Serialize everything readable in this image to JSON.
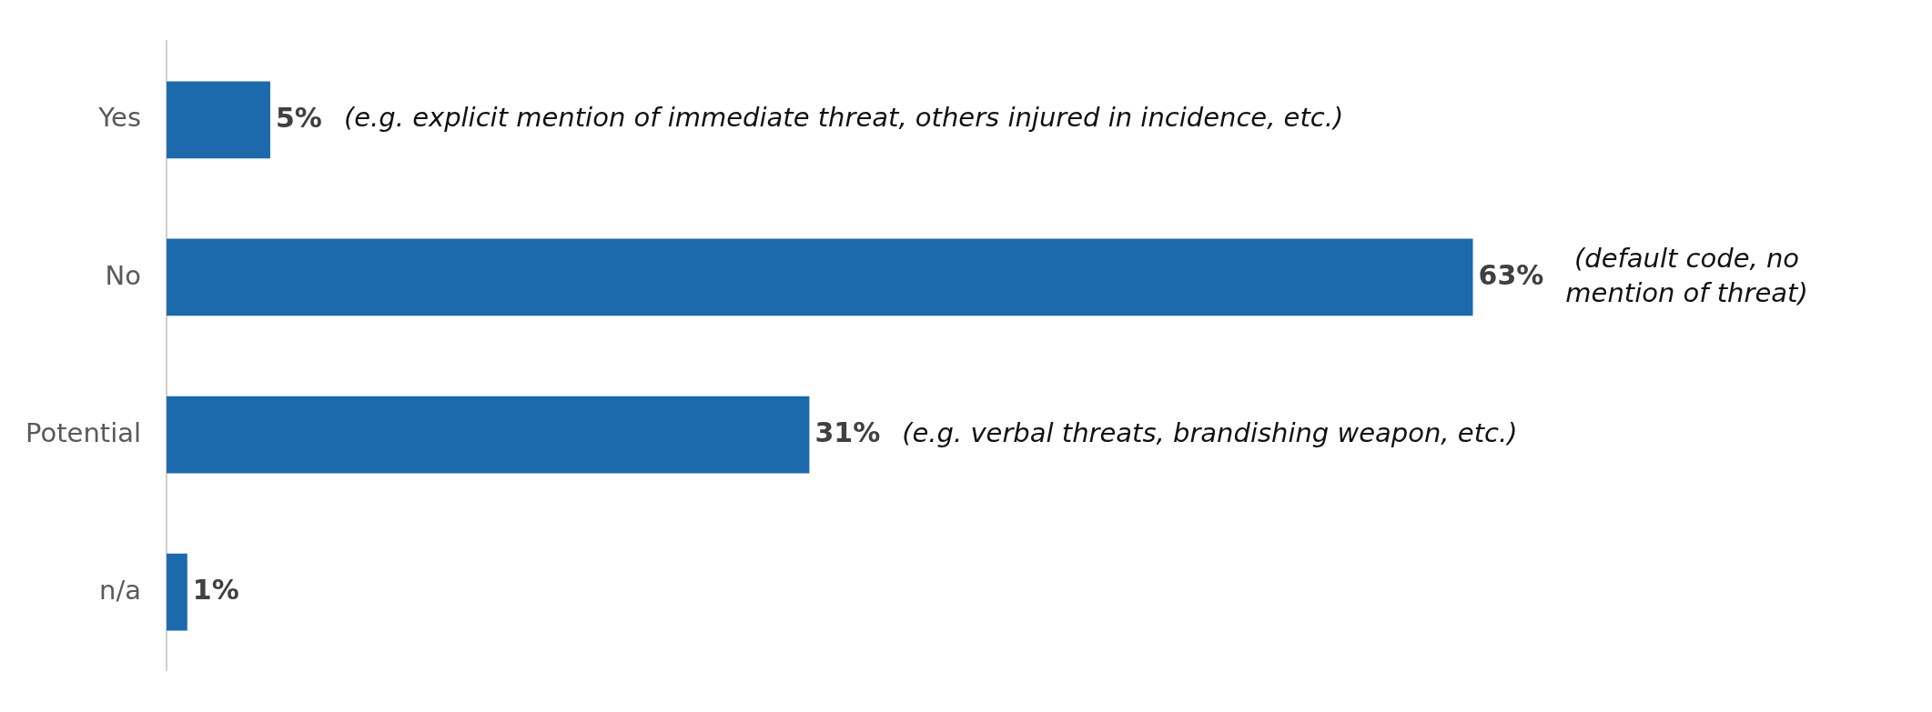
{
  "chart_data": {
    "type": "bar",
    "orientation": "horizontal",
    "categories": [
      "Yes",
      "No",
      "Potential",
      "n/a"
    ],
    "values": [
      5,
      63,
      31,
      1
    ],
    "color": "#1c6aab",
    "value_labels": [
      "5%",
      "63%",
      "31%",
      "1%"
    ],
    "tick_labels": "y",
    "legend": false,
    "annotations": [
      "(e.g. explicit mention of immediate threat, others injured in incidence, etc.)",
      "(default code, no\nmention of threat)",
      "(e.g. verbal threats, brandishing weapon, etc.)"
    ]
  }
}
